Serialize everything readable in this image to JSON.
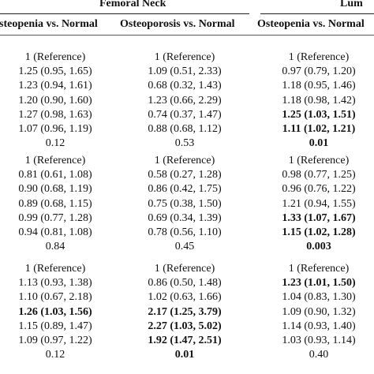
{
  "header": {
    "group1": "Femoral Neck",
    "group2": "Lum",
    "col1": "steopenia vs. Normal",
    "col2": "Osteoporosis vs. Normal",
    "col3": "Osteopenia vs. Normal"
  },
  "blocks": [
    {
      "rows": [
        {
          "c1": "1 (Reference)",
          "c2": "1 (Reference)",
          "c3": "1 (Reference)",
          "b3": false
        },
        {
          "c1": "1.25 (0.95, 1.65)",
          "c2": "1.09 (0.51, 2.33)",
          "c3": "0.97 (0.79, 1.20)",
          "b3": false
        },
        {
          "c1": "1.23 (0.94, 1.61)",
          "c2": "0.68 (0.32, 1.43)",
          "c3": "1.18 (0.95, 1.46)",
          "b3": false
        },
        {
          "c1": "1.20 (0.90, 1.60)",
          "c2": "1.23 (0.66, 2.29)",
          "c3": "1.18 (0.98, 1.42)",
          "b3": false
        },
        {
          "c1": "1.27 (0.98, 1.63)",
          "c2": "0.74 (0.37, 1.47)",
          "c3": "1.25 (1.03, 1.51)",
          "b3": true
        },
        {
          "c1": "1.07 (0.96, 1.19)",
          "c2": "0.88 (0.68, 1.12)",
          "c3": "1.11 (1.02, 1.21)",
          "b3": true
        },
        {
          "c1": "0.12",
          "c2": "0.53",
          "c3": "0.01",
          "b3": true
        }
      ]
    },
    {
      "rows": [
        {
          "c1": "1 (Reference)",
          "c2": "1 (Reference)",
          "c3": "1 (Reference)",
          "b3": false
        },
        {
          "c1": "0.81 (0.61, 1.08)",
          "c2": "0.58 (0.27, 1.28)",
          "c3": "0.98 (0.77, 1.25)",
          "b3": false
        },
        {
          "c1": "0.90 (0.68, 1.19)",
          "c2": "0.86 (0.42, 1.75)",
          "c3": "0.96 (0.76, 1.22)",
          "b3": false
        },
        {
          "c1": "0.89 (0.68, 1.15)",
          "c2": "0.75 (0.38, 1.50)",
          "c3": "1.21 (0.94, 1.55)",
          "b3": false
        },
        {
          "c1": "0.99 (0.77, 1.28)",
          "c2": "0.69 (0.34, 1.39)",
          "c3": "1.33 (1.07, 1.67)",
          "b3": true
        },
        {
          "c1": "0.94 (0.81, 1.08)",
          "c2": "0.78 (0.56, 1.10)",
          "c3": "1.15 (1.02, 1.28)",
          "b3": true
        },
        {
          "c1": "0.84",
          "c2": "0.45",
          "c3": "0.003",
          "b3": true
        }
      ]
    },
    {
      "rows": [
        {
          "c1": "1 (Reference)",
          "c2": "1 (Reference)",
          "c3": "1 (Reference)",
          "b1": false,
          "b2": false,
          "b3": false
        },
        {
          "c1": "1.13 (0.93, 1.38)",
          "c2": "0.86 (0.50, 1.48)",
          "c3": "1.23 (1.01, 1.50)",
          "b1": false,
          "b2": false,
          "b3": true
        },
        {
          "c1": "1.10 (0.67, 2.18)",
          "c2": "1.02 (0.63, 1.66)",
          "c3": "1.04 (0.83, 1.30)",
          "b1": false,
          "b2": false,
          "b3": false
        },
        {
          "c1": "1.26 (1.03, 1.56)",
          "c2": "2.17 (1.25, 3.79)",
          "c3": "1.09 (0.90, 1.32)",
          "b1": true,
          "b2": true,
          "b3": false
        },
        {
          "c1": "1.15 (0.89, 1.47)",
          "c2": "2.27 (1.03, 5.02)",
          "c3": "1.14 (0.93, 1.40)",
          "b1": false,
          "b2": true,
          "b3": false
        },
        {
          "c1": "1.09 (0.97, 1.22)",
          "c2": "1.92 (1.47, 2.51)",
          "c3": "1.03 (0.93, 1.14)",
          "b1": false,
          "b2": true,
          "b3": false
        },
        {
          "c1": "0.12",
          "c2": "0.01",
          "c3": "0.40",
          "b1": false,
          "b2": true,
          "b3": false
        }
      ]
    }
  ]
}
